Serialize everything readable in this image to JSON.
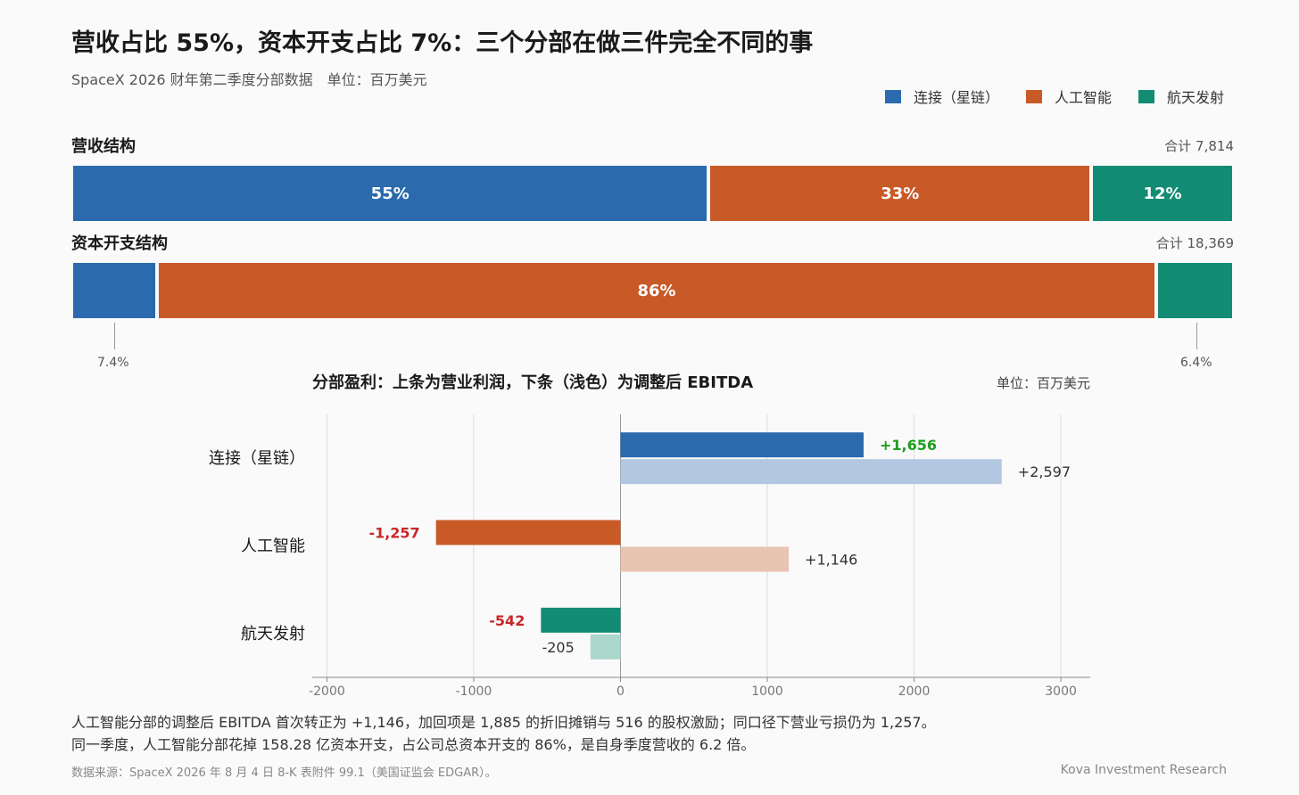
{
  "header": {
    "title": "营收占比 55%，资本开支占比 7%：三个分部在做三件完全不同的事",
    "subtitle": "SpaceX 2026 财年第二季度分部数据　单位：百万美元"
  },
  "legend": [
    {
      "label": "连接（星链）",
      "color": "#2a6aad"
    },
    {
      "label": "人工智能",
      "color": "#c85a28"
    },
    {
      "label": "航天发射",
      "color": "#128c72"
    }
  ],
  "revenue": {
    "label": "营收结构",
    "total_label": "合计 7,814",
    "segments": [
      {
        "value": 55,
        "text": "55%",
        "color": "#2a6aad"
      },
      {
        "value": 33,
        "text": "33%",
        "color": "#c85a28"
      },
      {
        "value": 12,
        "text": "12%",
        "color": "#128c72"
      }
    ]
  },
  "capex": {
    "label": "资本开支结构",
    "total_label": "合计 18,369",
    "segments": [
      {
        "value": 7.4,
        "text": "",
        "color": "#2a6aad"
      },
      {
        "value": 86.2,
        "text": "86%",
        "color": "#c85a28"
      },
      {
        "value": 6.4,
        "text": "",
        "color": "#128c72"
      }
    ],
    "callouts": [
      "7.4%",
      "6.4%"
    ]
  },
  "chart_data": {
    "type": "bar",
    "orientation": "horizontal",
    "title": "分部盈利：上条为营业利润，下条（浅色）为调整后 EBITDA",
    "unit_label": "单位：百万美元",
    "categories": [
      "连接（星链）",
      "人工智能",
      "航天发射"
    ],
    "series": [
      {
        "name": "营业利润",
        "values": [
          1656,
          -1257,
          -542
        ],
        "labels": [
          "+1,656",
          "-1,257",
          "-542"
        ],
        "colors": [
          "#2a6aad",
          "#c85a28",
          "#128c72"
        ]
      },
      {
        "name": "调整后 EBITDA",
        "values": [
          2597,
          1146,
          -205
        ],
        "labels": [
          "+2,597",
          "+1,146",
          "-205"
        ],
        "colors": [
          "#b3c8e0",
          "#e9c4b2",
          "#acd7cc"
        ]
      }
    ],
    "xlim": [
      -2100,
      3200
    ],
    "xticks": [
      -2000,
      -1000,
      0,
      1000,
      2000,
      3000
    ],
    "xtick_labels": [
      "-2000",
      "-1000",
      "0",
      "1000",
      "2000",
      "3000"
    ],
    "grid": true,
    "positive_label_color": "#1e9e1e",
    "negative_label_color": "#c62828"
  },
  "footnotes": [
    "人工智能分部的调整后 EBITDA 首次转正为 +1,146，加回项是 1,885 的折旧摊销与 516 的股权激励；同口径下营业亏损仍为 1,257。",
    "同一季度，人工智能分部花掉 158.28 亿资本开支，占公司总资本开支的 86%，是自身季度营收的 6.2 倍。"
  ],
  "source": "数据来源：SpaceX 2026 年 8 月 4 日 8-K 表附件 99.1（美国证监会 EDGAR）。",
  "credit": "Kova Investment Research"
}
